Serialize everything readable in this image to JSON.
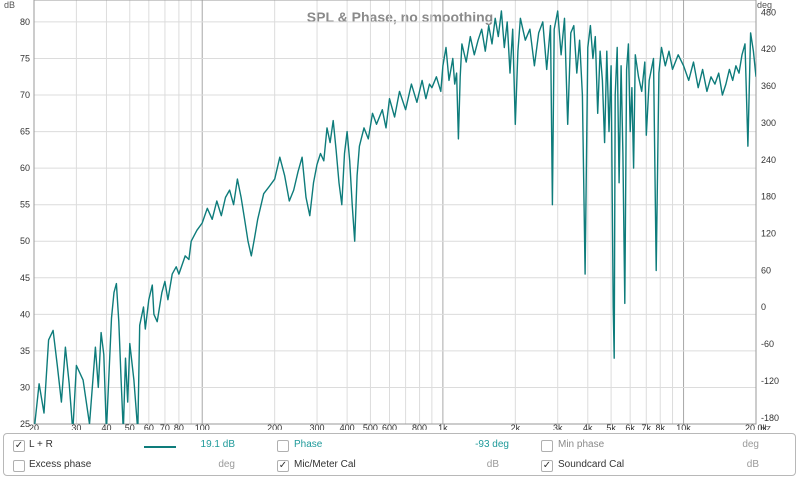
{
  "chart_data": {
    "type": "line",
    "title": "SPL & Phase, no smoothing",
    "left_axis_unit": "dB",
    "right_axis_unit": "deg",
    "x_axis_unit": "Hz",
    "x_scale": "log",
    "xlim": [
      20,
      20000
    ],
    "ylim": [
      25,
      83
    ],
    "y2lim": [
      -190,
      500
    ],
    "grid": true,
    "x_ticks": [
      {
        "v": 20,
        "l": "20"
      },
      {
        "v": 30,
        "l": "30"
      },
      {
        "v": 40,
        "l": "40"
      },
      {
        "v": 50,
        "l": "50"
      },
      {
        "v": 60,
        "l": "60"
      },
      {
        "v": 70,
        "l": "70"
      },
      {
        "v": 80,
        "l": "80"
      },
      {
        "v": 100,
        "l": "100"
      },
      {
        "v": 200,
        "l": "200"
      },
      {
        "v": 300,
        "l": "300"
      },
      {
        "v": 400,
        "l": "400"
      },
      {
        "v": 500,
        "l": "500"
      },
      {
        "v": 600,
        "l": "600"
      },
      {
        "v": 800,
        "l": "800"
      },
      {
        "v": 1000,
        "l": "1k"
      },
      {
        "v": 2000,
        "l": "2k"
      },
      {
        "v": 3000,
        "l": "3k"
      },
      {
        "v": 4000,
        "l": "4k"
      },
      {
        "v": 5000,
        "l": "5k"
      },
      {
        "v": 6000,
        "l": "6k"
      },
      {
        "v": 7000,
        "l": "7k"
      },
      {
        "v": 8000,
        "l": "8k"
      },
      {
        "v": 10000,
        "l": "10k"
      },
      {
        "v": 20000,
        "l": "20.0k"
      }
    ],
    "y_ticks": [
      25,
      30,
      35,
      40,
      45,
      50,
      55,
      60,
      65,
      70,
      75,
      80
    ],
    "y2_ticks": [
      -180,
      -120,
      -60,
      0,
      60,
      120,
      180,
      240,
      300,
      360,
      420,
      480
    ],
    "series": [
      {
        "name": "L + R",
        "color": "#0e7c7b",
        "points": [
          [
            20,
            24.0
          ],
          [
            21,
            30.5
          ],
          [
            22,
            26.5
          ],
          [
            23,
            36.5
          ],
          [
            24,
            37.8
          ],
          [
            25,
            33.0
          ],
          [
            26,
            28.0
          ],
          [
            27,
            35.5
          ],
          [
            28,
            30.5
          ],
          [
            29,
            24.0
          ],
          [
            30,
            33.0
          ],
          [
            32,
            31.0
          ],
          [
            34,
            25.0
          ],
          [
            36,
            35.5
          ],
          [
            37,
            30.0
          ],
          [
            38,
            37.5
          ],
          [
            39,
            34.5
          ],
          [
            40,
            24.0
          ],
          [
            42,
            39.5
          ],
          [
            43,
            43.0
          ],
          [
            44,
            44.2
          ],
          [
            45,
            39.0
          ],
          [
            46,
            31.0
          ],
          [
            47,
            24.0
          ],
          [
            48,
            34.0
          ],
          [
            49,
            28.0
          ],
          [
            50,
            36.0
          ],
          [
            52,
            31.0
          ],
          [
            54,
            24.0
          ],
          [
            55,
            38.5
          ],
          [
            57,
            41.0
          ],
          [
            58,
            38.0
          ],
          [
            60,
            42.0
          ],
          [
            62,
            44.0
          ],
          [
            63,
            40.0
          ],
          [
            65,
            39.0
          ],
          [
            68,
            43.0
          ],
          [
            70,
            44.5
          ],
          [
            72,
            42.0
          ],
          [
            75,
            45.5
          ],
          [
            78,
            46.5
          ],
          [
            80,
            45.5
          ],
          [
            85,
            48.0
          ],
          [
            88,
            47.5
          ],
          [
            90,
            50.0
          ],
          [
            95,
            51.5
          ],
          [
            100,
            52.5
          ],
          [
            105,
            54.5
          ],
          [
            110,
            53.0
          ],
          [
            115,
            55.5
          ],
          [
            120,
            53.5
          ],
          [
            125,
            56.0
          ],
          [
            130,
            57.0
          ],
          [
            135,
            55.0
          ],
          [
            140,
            58.5
          ],
          [
            145,
            56.0
          ],
          [
            150,
            53.0
          ],
          [
            155,
            50.0
          ],
          [
            160,
            48.0
          ],
          [
            165,
            50.5
          ],
          [
            170,
            53.0
          ],
          [
            180,
            56.5
          ],
          [
            190,
            57.5
          ],
          [
            200,
            58.5
          ],
          [
            210,
            61.5
          ],
          [
            220,
            59.0
          ],
          [
            230,
            55.5
          ],
          [
            240,
            57.0
          ],
          [
            250,
            59.5
          ],
          [
            260,
            61.5
          ],
          [
            270,
            56.0
          ],
          [
            280,
            53.5
          ],
          [
            290,
            58.0
          ],
          [
            300,
            60.5
          ],
          [
            310,
            62.0
          ],
          [
            320,
            61.0
          ],
          [
            330,
            65.5
          ],
          [
            340,
            63.5
          ],
          [
            350,
            66.5
          ],
          [
            360,
            62.5
          ],
          [
            370,
            58.0
          ],
          [
            380,
            55.0
          ],
          [
            390,
            62.0
          ],
          [
            400,
            65.0
          ],
          [
            410,
            61.0
          ],
          [
            420,
            55.0
          ],
          [
            430,
            50.0
          ],
          [
            440,
            59.0
          ],
          [
            450,
            63.0
          ],
          [
            470,
            65.5
          ],
          [
            490,
            64.0
          ],
          [
            510,
            67.5
          ],
          [
            530,
            66.0
          ],
          [
            560,
            68.0
          ],
          [
            580,
            65.5
          ],
          [
            600,
            69.5
          ],
          [
            630,
            67.0
          ],
          [
            660,
            70.5
          ],
          [
            700,
            68.0
          ],
          [
            740,
            71.5
          ],
          [
            780,
            69.0
          ],
          [
            820,
            72.0
          ],
          [
            850,
            69.5
          ],
          [
            880,
            71.5
          ],
          [
            900,
            71.0
          ],
          [
            940,
            72.5
          ],
          [
            980,
            70.5
          ],
          [
            1000,
            74.0
          ],
          [
            1030,
            76.5
          ],
          [
            1060,
            72.0
          ],
          [
            1100,
            75.0
          ],
          [
            1120,
            71.5
          ],
          [
            1140,
            73.0
          ],
          [
            1160,
            64.0
          ],
          [
            1180,
            72.5
          ],
          [
            1200,
            77.0
          ],
          [
            1250,
            74.5
          ],
          [
            1300,
            78.0
          ],
          [
            1350,
            75.5
          ],
          [
            1400,
            77.5
          ],
          [
            1450,
            79.0
          ],
          [
            1500,
            76.0
          ],
          [
            1550,
            79.5
          ],
          [
            1600,
            77.0
          ],
          [
            1650,
            80.5
          ],
          [
            1700,
            78.0
          ],
          [
            1750,
            81.5
          ],
          [
            1800,
            76.5
          ],
          [
            1850,
            80.0
          ],
          [
            1900,
            73.0
          ],
          [
            1950,
            79.0
          ],
          [
            2000,
            66.0
          ],
          [
            2050,
            76.0
          ],
          [
            2100,
            80.5
          ],
          [
            2200,
            77.5
          ],
          [
            2300,
            79.0
          ],
          [
            2400,
            74.0
          ],
          [
            2500,
            78.5
          ],
          [
            2600,
            80.0
          ],
          [
            2700,
            73.5
          ],
          [
            2800,
            79.5
          ],
          [
            2850,
            55.0
          ],
          [
            2900,
            79.0
          ],
          [
            3000,
            81.5
          ],
          [
            3100,
            75.5
          ],
          [
            3200,
            80.5
          ],
          [
            3300,
            66.0
          ],
          [
            3400,
            78.5
          ],
          [
            3500,
            79.5
          ],
          [
            3600,
            73.0
          ],
          [
            3700,
            77.5
          ],
          [
            3800,
            70.0
          ],
          [
            3900,
            45.5
          ],
          [
            4000,
            76.5
          ],
          [
            4100,
            79.5
          ],
          [
            4200,
            75.0
          ],
          [
            4300,
            78.0
          ],
          [
            4400,
            67.5
          ],
          [
            4500,
            76.0
          ],
          [
            4600,
            72.0
          ],
          [
            4700,
            63.5
          ],
          [
            4800,
            76.0
          ],
          [
            4900,
            65.0
          ],
          [
            5000,
            74.0
          ],
          [
            5100,
            41.0
          ],
          [
            5150,
            34.0
          ],
          [
            5200,
            70.0
          ],
          [
            5300,
            76.5
          ],
          [
            5400,
            58.0
          ],
          [
            5500,
            74.0
          ],
          [
            5600,
            62.0
          ],
          [
            5700,
            41.5
          ],
          [
            5800,
            73.5
          ],
          [
            5900,
            77.0
          ],
          [
            6000,
            65.0
          ],
          [
            6100,
            71.0
          ],
          [
            6200,
            60.0
          ],
          [
            6300,
            75.5
          ],
          [
            6500,
            72.5
          ],
          [
            6700,
            70.5
          ],
          [
            6900,
            74.5
          ],
          [
            7000,
            64.5
          ],
          [
            7200,
            72.0
          ],
          [
            7500,
            75.0
          ],
          [
            7700,
            46.0
          ],
          [
            7900,
            73.0
          ],
          [
            8100,
            76.5
          ],
          [
            8400,
            74.0
          ],
          [
            8700,
            76.0
          ],
          [
            9000,
            73.5
          ],
          [
            9500,
            75.5
          ],
          [
            10000,
            74.0
          ],
          [
            10500,
            72.0
          ],
          [
            11000,
            74.5
          ],
          [
            11500,
            71.0
          ],
          [
            12000,
            73.5
          ],
          [
            12500,
            70.5
          ],
          [
            13000,
            72.5
          ],
          [
            13500,
            71.5
          ],
          [
            14000,
            73.0
          ],
          [
            14500,
            70.0
          ],
          [
            15000,
            71.5
          ],
          [
            15500,
            73.5
          ],
          [
            16000,
            72.0
          ],
          [
            16500,
            74.0
          ],
          [
            17000,
            73.0
          ],
          [
            17500,
            75.5
          ],
          [
            18000,
            77.0
          ],
          [
            18500,
            63.0
          ],
          [
            19000,
            78.5
          ],
          [
            19500,
            76.0
          ],
          [
            20000,
            72.5
          ]
        ]
      }
    ]
  },
  "legend": {
    "rows": [
      [
        {
          "checked": true,
          "label": "L + R",
          "value": "19.1 dB",
          "active": true,
          "swatch": true
        },
        {
          "checked": false,
          "label": "Phase",
          "value": "-93 deg",
          "active": true
        },
        {
          "checked": false,
          "label": "Min phase",
          "value": "deg",
          "active": false
        }
      ],
      [
        {
          "checked": false,
          "label": "Excess phase",
          "value": "deg",
          "active": false
        },
        {
          "checked": true,
          "label": "Mic/Meter Cal",
          "value": "dB",
          "active": false
        },
        {
          "checked": true,
          "label": "Soundcard Cal",
          "value": "dB",
          "active": false
        }
      ]
    ]
  }
}
